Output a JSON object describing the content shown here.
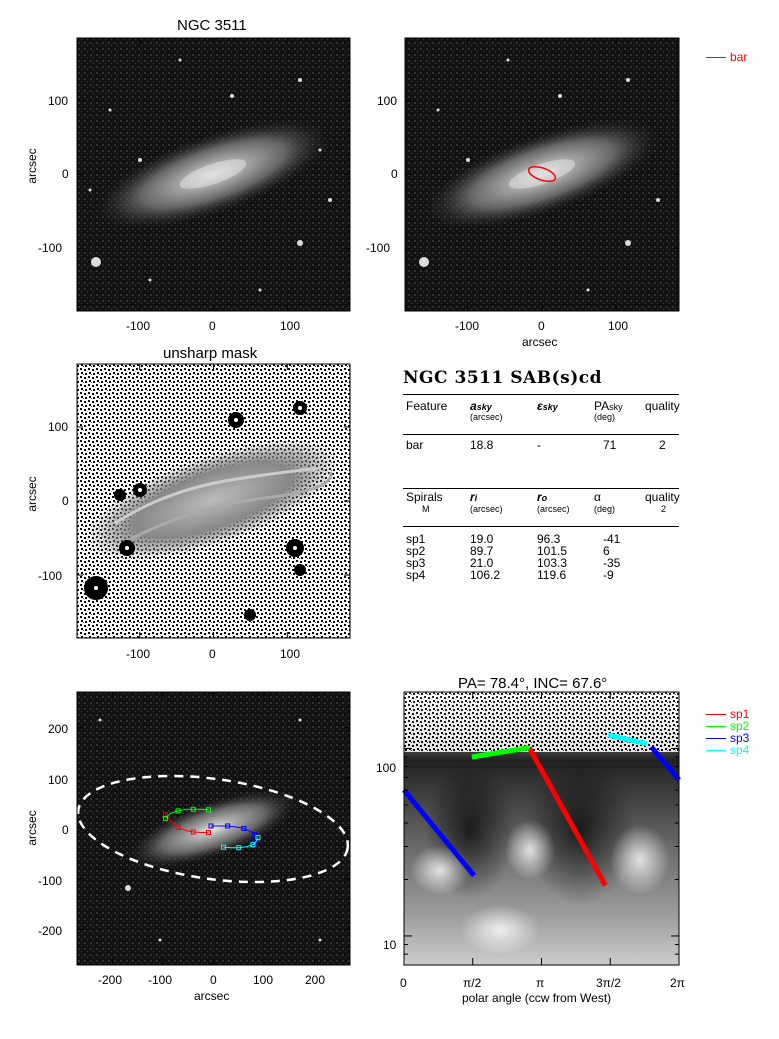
{
  "panels": {
    "top_left": {
      "title": "NGC 3511",
      "ylabel": "arcsec",
      "xticks": [
        "-100",
        "0",
        "100"
      ],
      "yticks": [
        "100",
        "0",
        "-100"
      ]
    },
    "top_right": {
      "xlabel": "arcsec",
      "xticks": [
        "-100",
        "0",
        "100"
      ],
      "yticks": [
        "100",
        "0",
        "-100"
      ],
      "legend": {
        "label": "bar",
        "color": "#ff0000"
      }
    },
    "mid_left": {
      "title": "unsharp mask",
      "ylabel": "arcsec",
      "xticks": [
        "-100",
        "0",
        "100"
      ],
      "yticks": [
        "100",
        "0",
        "-100"
      ]
    },
    "bottom_left": {
      "ylabel": "arcsec",
      "xlabel": "arcsec",
      "xticks": [
        "-200",
        "-100",
        "0",
        "100",
        "200"
      ],
      "yticks": [
        "200",
        "100",
        "0",
        "-100",
        "-200"
      ]
    },
    "bottom_right": {
      "title": "PA= 78.4°, INC= 67.6°",
      "xlabel": "polar angle (ccw from West)",
      "xticks": [
        "0",
        "π/2",
        "π",
        "3π/2",
        "2π"
      ],
      "yticks": [
        "100",
        "10"
      ],
      "legend": [
        {
          "label": "sp1",
          "color": "#ff0000"
        },
        {
          "label": "sp2",
          "color": "#00ff00"
        },
        {
          "label": "sp3",
          "color": "#0000ff"
        },
        {
          "label": "sp4",
          "color": "#00ffff"
        }
      ]
    }
  },
  "table": {
    "title": "NGC 3511  SAB(s)cd",
    "bar_header": {
      "feature": "Feature",
      "a": "a",
      "a_sub": "sky",
      "a_unit": "(arcsec)",
      "eps": "ε",
      "eps_sub": "sky",
      "pa": "PA",
      "pa_sub": "sky",
      "pa_unit": "(deg)",
      "quality": "quality"
    },
    "bar_row": {
      "feature": "bar",
      "a": "18.8",
      "eps": "-",
      "pa": "71",
      "quality": "2"
    },
    "spiral_header": {
      "spirals": "Spirals",
      "m": "M",
      "ri": "r",
      "ri_sub": "i",
      "ri_unit": "(arcsec)",
      "ro": "r",
      "ro_sub": "o",
      "ro_unit": "(arcsec)",
      "alpha": "α",
      "alpha_unit": "(deg)",
      "quality": "quality",
      "quality_val": "2"
    },
    "spiral_rows": [
      {
        "name": "sp1",
        "ri": "19.0",
        "ro": "96.3",
        "alpha": "-41"
      },
      {
        "name": "sp2",
        "ri": "89.7",
        "ro": "101.5",
        "alpha": "6"
      },
      {
        "name": "sp3",
        "ri": "21.0",
        "ro": "103.3",
        "alpha": "-35"
      },
      {
        "name": "sp4",
        "ri": "106.2",
        "ro": "119.6",
        "alpha": "-9"
      }
    ]
  },
  "chart_data": [
    {
      "type": "scatter",
      "title": "NGC 3511",
      "description_of_marks": "galaxy image",
      "ylabel": "arcsec",
      "xlim": [
        -185,
        185
      ],
      "ylim": [
        -185,
        185
      ]
    },
    {
      "type": "scatter",
      "xlabel": "arcsec",
      "xlim": [
        -185,
        185
      ],
      "ylim": [
        -185,
        185
      ],
      "series": [
        {
          "name": "bar",
          "values": [
            {
              "a_arcsec": 18.8,
              "pa_deg": 71
            }
          ]
        }
      ]
    },
    {
      "type": "scatter",
      "title": "unsharp mask",
      "ylabel": "arcsec",
      "xlim": [
        -185,
        185
      ],
      "ylim": [
        -185,
        185
      ]
    },
    {
      "type": "line",
      "xlabel": "arcsec",
      "ylabel": "arcsec",
      "xlim": [
        -270,
        270
      ],
      "ylim": [
        -270,
        270
      ],
      "series": [
        {
          "name": "sp1",
          "x": [
            -95,
            -85,
            -70,
            -55,
            -40,
            -25,
            -10
          ],
          "y": [
            27,
            15,
            2,
            -4,
            -7,
            -8,
            -8
          ]
        },
        {
          "name": "sp2",
          "x": [
            -95,
            -85,
            -70,
            -55,
            -40,
            -25,
            -10
          ],
          "y": [
            20,
            30,
            35,
            38,
            38,
            38,
            37
          ]
        },
        {
          "name": "sp3",
          "x": [
            -5,
            10,
            28,
            45,
            60,
            72,
            82,
            85,
            82,
            75
          ],
          "y": [
            5,
            5,
            5,
            3,
            0,
            -5,
            -12,
            -20,
            -28,
            -33
          ]
        },
        {
          "name": "sp4",
          "x": [
            20,
            35,
            50,
            65,
            78,
            85,
            88
          ],
          "y": [
            -37,
            -38,
            -38,
            -36,
            -32,
            -25,
            -18
          ]
        }
      ]
    },
    {
      "type": "line",
      "title": "PA= 78.4°, INC= 67.6°",
      "xlabel": "polar angle (ccw from West)",
      "xlim": [
        0,
        6.2832
      ],
      "ylim": [
        7,
        200
      ],
      "yscale": "log",
      "series": [
        {
          "name": "sp1",
          "x": [
            2.86,
            4.6
          ],
          "y": [
            101,
            18.6
          ]
        },
        {
          "name": "sp2",
          "x": [
            1.55,
            2.86
          ],
          "y": [
            90,
            101
          ]
        },
        {
          "name": "sp3",
          "x": [
            0,
            1.6
          ],
          "y": [
            60,
            21
          ]
        },
        {
          "name": "sp3",
          "x": [
            5.65,
            6.2832
          ],
          "y": [
            102,
            68
          ]
        },
        {
          "name": "sp4",
          "x": [
            4.66,
            5.55
          ],
          "y": [
            118,
            106
          ]
        }
      ]
    }
  ]
}
